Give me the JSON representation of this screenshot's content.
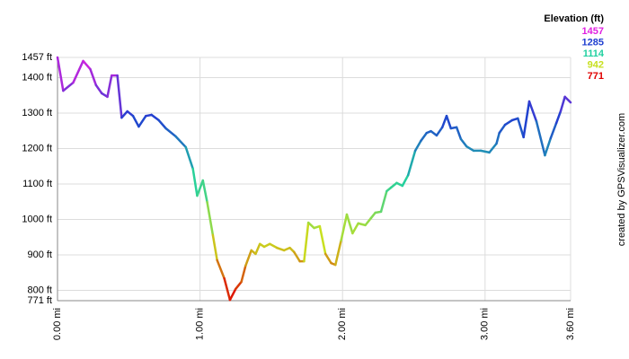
{
  "chart_data": {
    "type": "line",
    "legend_title": "Elevation (ft)",
    "credit": "created by GPSVisualizer.com",
    "color_scale": [
      {
        "value": 1457,
        "color": "#e020e0"
      },
      {
        "value": 1285,
        "color": "#2040d0"
      },
      {
        "value": 1114,
        "color": "#20d0a0"
      },
      {
        "value": 942,
        "color": "#c8e020"
      },
      {
        "value": 771,
        "color": "#e00000"
      }
    ],
    "x": [
      0,
      0.04,
      0.11,
      0.18,
      0.23,
      0.27,
      0.31,
      0.35,
      0.38,
      0.42,
      0.45,
      0.49,
      0.53,
      0.57,
      0.62,
      0.66,
      0.71,
      0.76,
      0.83,
      0.9,
      0.95,
      0.98,
      1.02,
      1.05,
      1.09,
      1.12,
      1.17,
      1.21,
      1.25,
      1.29,
      1.32,
      1.36,
      1.39,
      1.42,
      1.45,
      1.49,
      1.54,
      1.59,
      1.63,
      1.66,
      1.7,
      1.73,
      1.76,
      1.8,
      1.84,
      1.88,
      1.92,
      1.95,
      1.99,
      2.03,
      2.07,
      2.11,
      2.16,
      2.2,
      2.23,
      2.27,
      2.31,
      2.34,
      2.38,
      2.42,
      2.46,
      2.51,
      2.55,
      2.59,
      2.62,
      2.66,
      2.7,
      2.73,
      2.76,
      2.8,
      2.83,
      2.87,
      2.92,
      2.97,
      3.03,
      3.08,
      3.1,
      3.14,
      3.19,
      3.23,
      3.27,
      3.31,
      3.36,
      3.42,
      3.46,
      3.5,
      3.53,
      3.56,
      3.6
    ],
    "values": [
      1457,
      1363,
      1386,
      1447,
      1424,
      1379,
      1356,
      1346,
      1406,
      1406,
      1287,
      1305,
      1292,
      1262,
      1292,
      1295,
      1280,
      1257,
      1234,
      1204,
      1143,
      1067,
      1110,
      1049,
      956,
      885,
      834,
      773,
      804,
      824,
      870,
      913,
      903,
      931,
      923,
      931,
      920,
      913,
      920,
      908,
      882,
      882,
      991,
      976,
      981,
      903,
      877,
      872,
      941,
      1014,
      961,
      989,
      984,
      1004,
      1019,
      1022,
      1080,
      1090,
      1103,
      1095,
      1125,
      1194,
      1222,
      1244,
      1249,
      1237,
      1260,
      1292,
      1257,
      1260,
      1227,
      1206,
      1194,
      1194,
      1189,
      1214,
      1244,
      1267,
      1280,
      1285,
      1232,
      1333,
      1277,
      1181,
      1229,
      1272,
      1305,
      1346,
      1330
    ],
    "xlim": [
      0,
      3.6
    ],
    "ylim": [
      771,
      1457
    ],
    "xticks": [
      {
        "value": 0,
        "label": "0.00 mi"
      },
      {
        "value": 1,
        "label": "1.00 mi"
      },
      {
        "value": 2,
        "label": "2.00 mi"
      },
      {
        "value": 3,
        "label": "3.00 mi"
      },
      {
        "value": 3.6,
        "label": "3.60 mi"
      }
    ],
    "yticks": [
      {
        "value": 771,
        "label": "771 ft"
      },
      {
        "value": 800,
        "label": "800 ft"
      },
      {
        "value": 900,
        "label": "900 ft"
      },
      {
        "value": 1000,
        "label": "1000 ft"
      },
      {
        "value": 1100,
        "label": "1100 ft"
      },
      {
        "value": 1200,
        "label": "1200 ft"
      },
      {
        "value": 1300,
        "label": "1300 ft"
      },
      {
        "value": 1400,
        "label": "1400 ft"
      },
      {
        "value": 1457,
        "label": "1457 ft"
      }
    ],
    "grid": true
  }
}
